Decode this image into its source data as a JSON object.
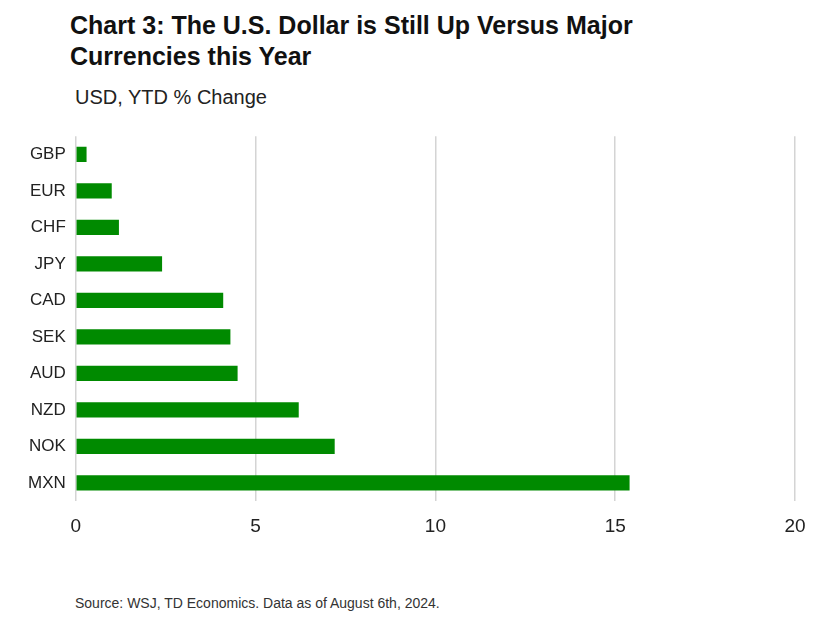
{
  "chart_data": {
    "type": "bar",
    "orientation": "horizontal",
    "title": "Chart 3: The U.S. Dollar is Still Up Versus Major Currencies this Year",
    "subtitle": "USD, YTD % Change",
    "source": "Source: WSJ, TD Economics. Data as of August 6th, 2024.",
    "categories": [
      "GBP",
      "EUR",
      "CHF",
      "JPY",
      "CAD",
      "SEK",
      "AUD",
      "NZD",
      "NOK",
      "MXN"
    ],
    "values": [
      0.3,
      1.0,
      1.2,
      2.4,
      4.1,
      4.3,
      4.5,
      6.2,
      7.2,
      15.4
    ],
    "color": "#008a00",
    "xlim": [
      0,
      20
    ],
    "xticks": [
      0,
      5,
      10,
      15,
      20
    ],
    "grid": true
  }
}
